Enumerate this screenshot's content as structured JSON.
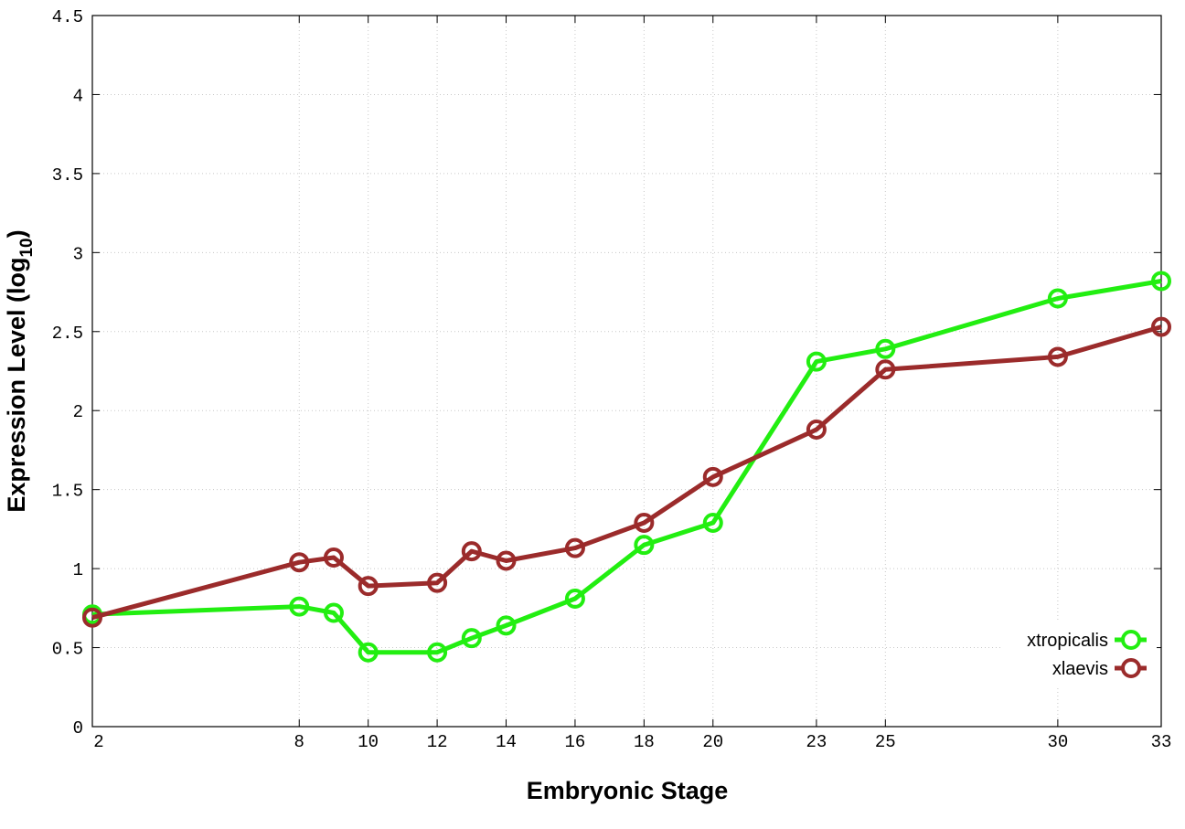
{
  "chart_data": {
    "type": "line",
    "title": "",
    "xlabel": "Embryonic Stage",
    "ylabel_main": "Expression Level (log",
    "ylabel_sub": "10",
    "ylabel_close": ")",
    "xlim": [
      2,
      33
    ],
    "ylim": [
      0,
      4.5
    ],
    "grid": true,
    "legend_position": "bottom-right",
    "x_ticks": [
      2,
      8,
      10,
      12,
      14,
      16,
      18,
      20,
      23,
      25,
      30,
      33
    ],
    "y_ticks": [
      0,
      0.5,
      1,
      1.5,
      2,
      2.5,
      3,
      3.5,
      4,
      4.5
    ],
    "x_tick_labels": [
      "2",
      "8",
      "10",
      "12",
      "14",
      "16",
      "18",
      "20",
      "23",
      "25",
      "30",
      "33"
    ],
    "y_tick_labels": [
      "0",
      "0.5",
      "1",
      "1.5",
      "2",
      "2.5",
      "3",
      "3.5",
      "4",
      "4.5"
    ],
    "series": [
      {
        "name": "xtropicalis",
        "color": "#22ee11",
        "x": [
          2,
          8,
          9,
          10,
          12,
          13,
          14,
          16,
          18,
          20,
          23,
          25,
          30,
          33
        ],
        "y": [
          0.71,
          0.76,
          0.72,
          0.47,
          0.47,
          0.56,
          0.64,
          0.81,
          1.15,
          1.29,
          2.31,
          2.39,
          2.71,
          2.82
        ]
      },
      {
        "name": "xlaevis",
        "color": "#9b2b2b",
        "x": [
          2,
          8,
          9,
          10,
          12,
          13,
          14,
          16,
          18,
          20,
          23,
          25,
          30,
          33
        ],
        "y": [
          0.69,
          1.04,
          1.07,
          0.89,
          0.91,
          1.11,
          1.05,
          1.13,
          1.29,
          1.58,
          1.88,
          2.26,
          2.34,
          2.53
        ]
      }
    ]
  }
}
